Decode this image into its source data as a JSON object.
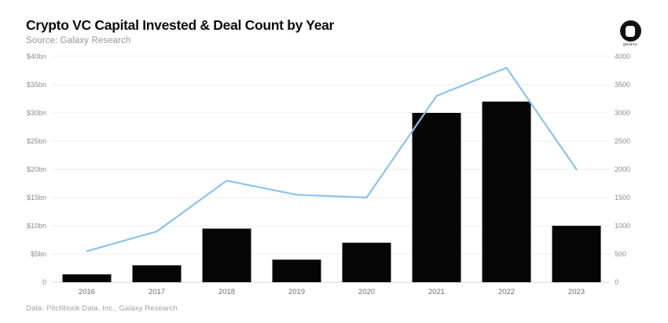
{
  "header": {
    "title": "Crypto VC Capital Invested & Deal Count by Year",
    "subtitle": "Source: Galaxy Research"
  },
  "logo": {
    "label": "galaxy"
  },
  "footer": {
    "note": "Data: Pitchbook Data, Inc., Galaxy Research"
  },
  "chart_data": {
    "type": "bar",
    "title": "Crypto VC Capital Invested & Deal Count by Year",
    "categories": [
      "2016",
      "2017",
      "2018",
      "2019",
      "2020",
      "2021",
      "2022",
      "2023"
    ],
    "series": [
      {
        "name": "Capital Invested",
        "type": "bar",
        "axis": "left",
        "color": "#050505",
        "values": [
          1.4,
          3,
          9.5,
          4,
          7,
          30,
          32,
          10
        ],
        "unit": "$bn"
      },
      {
        "name": "Deal Count",
        "type": "line",
        "axis": "right",
        "color": "#8ec2ea",
        "values": [
          550,
          900,
          1800,
          1550,
          1500,
          3300,
          3800,
          2000
        ],
        "unit": "deals"
      }
    ],
    "left_axis": {
      "min": 0,
      "max": 40,
      "tick_labels": [
        "$40bn",
        "$35bn",
        "$30bn",
        "$25bn",
        "$20bn",
        "$15bn",
        "$10bn",
        "$5bn",
        "0"
      ]
    },
    "right_axis": {
      "min": 0,
      "max": 4000,
      "tick_labels": [
        "4000",
        "3500",
        "3000",
        "2500",
        "2000",
        "1500",
        "1000",
        "500",
        "0"
      ]
    },
    "grid": true,
    "legend": "none",
    "colors": {
      "gridline": "#eeeeee",
      "baseline": "#d8d8d8",
      "axis_text": "#8c8c8c",
      "x_axis_text": "#6e6e6e"
    }
  }
}
